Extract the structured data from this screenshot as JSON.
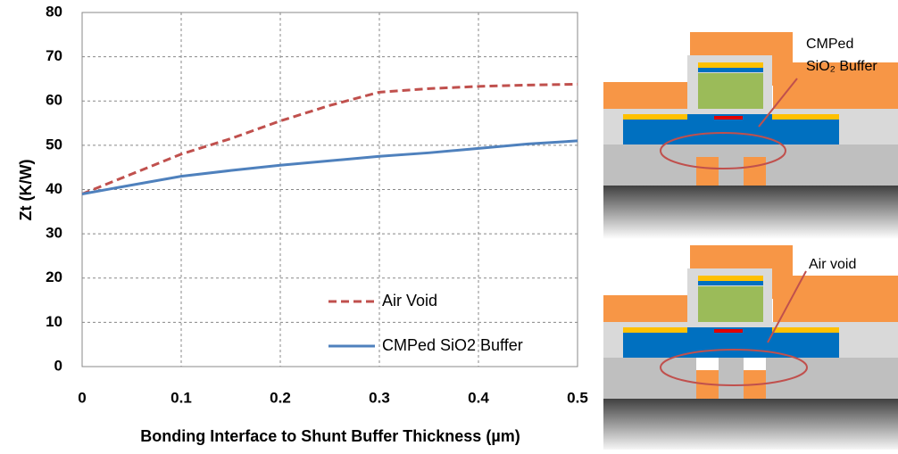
{
  "chart_data": {
    "type": "line",
    "xlabel": "Bonding Interface to Shunt Buffer Thickness (µm)",
    "ylabel": "Zt (K/W)",
    "x": [
      0,
      0.05,
      0.1,
      0.15,
      0.2,
      0.25,
      0.3,
      0.35,
      0.4,
      0.45,
      0.5
    ],
    "series": [
      {
        "name": "Air Void",
        "color": "#c0504d",
        "dashed": true,
        "values": [
          39,
          43.5,
          48,
          51.5,
          55.5,
          59,
          62,
          62.8,
          63.3,
          63.6,
          63.8
        ]
      },
      {
        "name": "CMPed SiO2 Buffer",
        "color": "#4f81bd",
        "dashed": false,
        "values": [
          39,
          41,
          43,
          44.3,
          45.5,
          46.5,
          47.5,
          48.3,
          49.3,
          50.3,
          51
        ]
      }
    ],
    "xlim": [
      0,
      0.5
    ],
    "xticks": [
      0,
      0.1,
      0.2,
      0.3,
      0.4,
      0.5
    ],
    "ylim": [
      0,
      80
    ],
    "yticks": [
      0,
      10,
      20,
      30,
      40,
      50,
      60,
      70,
      80
    ],
    "grid": true,
    "legend": "lower right",
    "annotations": [
      "CMPed",
      "SiO₂ Buffer",
      "Air void"
    ]
  }
}
